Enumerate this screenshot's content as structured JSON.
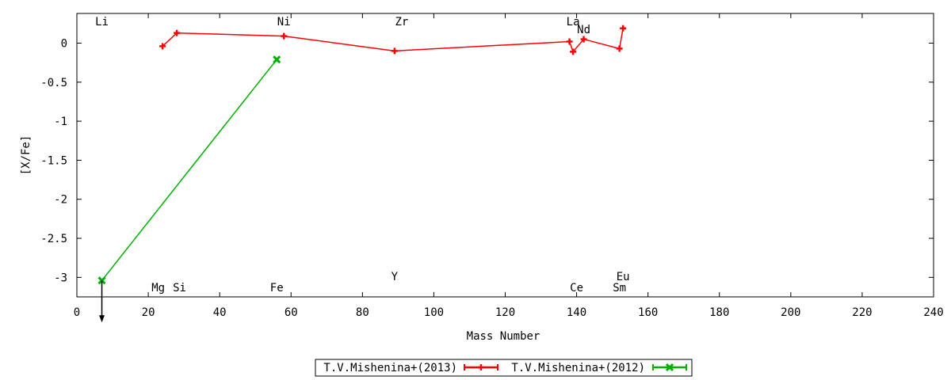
{
  "chart_data": {
    "type": "line",
    "xlabel": "Mass Number",
    "ylabel": "[X/Fe]",
    "xlim": [
      0,
      240
    ],
    "ylim": [
      -3.25,
      0.38
    ],
    "x_ticks": [
      "0",
      "20",
      "40",
      "60",
      "80",
      "100",
      "120",
      "140",
      "160",
      "180",
      "200",
      "220",
      "240"
    ],
    "y_ticks": [
      "0",
      "-0.5",
      "-1",
      "-1.5",
      "-2",
      "-2.5",
      "-3"
    ],
    "grid": false,
    "legend_position": "bottom-center",
    "series": [
      {
        "name": "T.V.Mishenina+(2013)",
        "color": "#ff0000",
        "marker": "plus",
        "x": [
          24,
          28,
          58,
          89,
          138,
          139,
          142,
          152,
          153
        ],
        "y": [
          -0.04,
          0.13,
          0.09,
          -0.1,
          0.02,
          -0.11,
          0.05,
          -0.07,
          0.19
        ]
      },
      {
        "name": "T.V.Mishenina+(2012)",
        "color": "#00b000",
        "marker": "x",
        "x": [
          7,
          56
        ],
        "y": [
          -3.04,
          -0.21
        ]
      }
    ],
    "upper_limit_arrows": [
      {
        "x": 7,
        "y": -3.04
      }
    ],
    "element_labels": [
      {
        "text": "Li",
        "x": 7,
        "position": "top"
      },
      {
        "text": "Ni",
        "x": 58,
        "position": "top"
      },
      {
        "text": "Zr",
        "x": 91,
        "position": "top"
      },
      {
        "text": "La",
        "x": 139,
        "position": "top"
      },
      {
        "text": "Nd",
        "x": 142,
        "position": "top2"
      },
      {
        "text": "Mg",
        "x": 24,
        "position": "bottom"
      },
      {
        "text": "Si",
        "x": 28,
        "position": "bottom"
      },
      {
        "text": "Fe",
        "x": 56,
        "position": "bottom"
      },
      {
        "text": "Y",
        "x": 89,
        "position": "bottom2"
      },
      {
        "text": "Ce",
        "x": 140,
        "position": "bottom"
      },
      {
        "text": "Sm",
        "x": 152,
        "position": "bottom"
      },
      {
        "text": "Eu",
        "x": 153,
        "position": "bottom2"
      }
    ]
  }
}
